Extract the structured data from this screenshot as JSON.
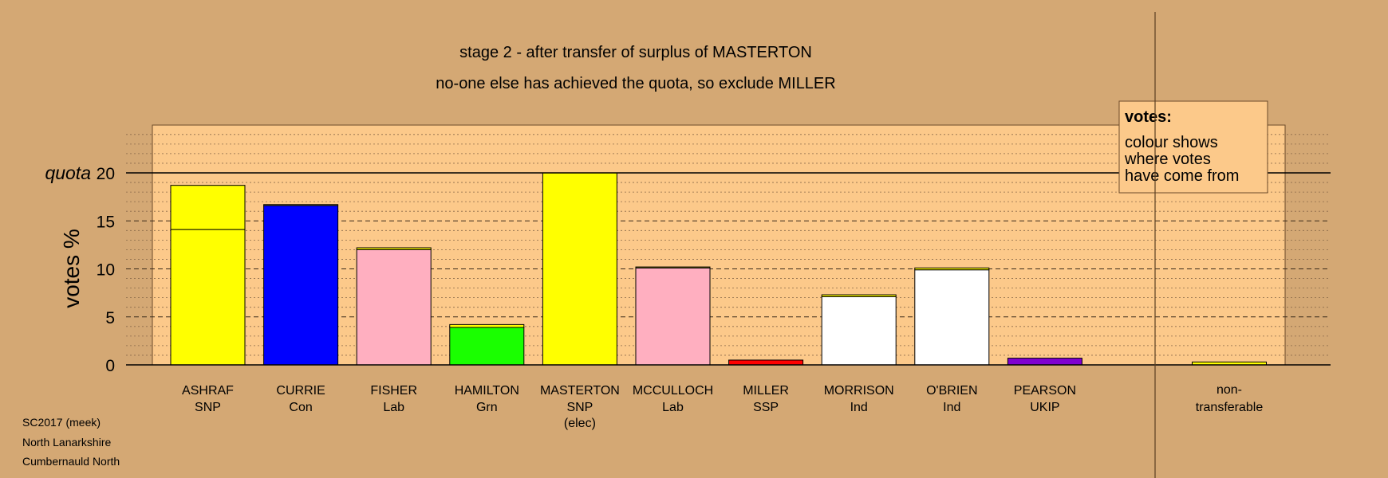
{
  "chart_data": {
    "type": "bar",
    "title": "stage 2 - after transfer of surplus of MASTERTON",
    "subtitle": "no-one else has achieved the quota, so exclude MILLER",
    "ylabel": "votes %",
    "quota_label": "quota",
    "quota": 20,
    "ylim": [
      0,
      25
    ],
    "yticks": [
      0,
      5,
      10,
      15,
      20
    ],
    "grid": true,
    "legend": {
      "position": "top-right",
      "heading": "votes:",
      "lines": [
        "colour shows",
        "where votes",
        "have come from"
      ]
    },
    "colors": {
      "background": "#d4a874",
      "plot_area": "#fcc98a",
      "SNP": "#ffff00",
      "Con": "#0000ff",
      "Lab": "#ffafc0",
      "Grn": "#1aff00",
      "SSP": "#ff0000",
      "Ind": "#ffffff",
      "UKIP": "#8000d0"
    },
    "candidates": [
      {
        "name": "ASHRAF",
        "party": "SNP",
        "note": "",
        "segments": [
          {
            "from": "SNP",
            "value": 14.1
          },
          {
            "from": "SNP",
            "value": 4.6
          }
        ]
      },
      {
        "name": "CURRIE",
        "party": "Con",
        "note": "",
        "segments": [
          {
            "from": "Con",
            "value": 16.6
          },
          {
            "from": "SNP",
            "value": 0.1
          }
        ]
      },
      {
        "name": "FISHER",
        "party": "Lab",
        "note": "",
        "segments": [
          {
            "from": "Lab",
            "value": 12.0
          },
          {
            "from": "SNP",
            "value": 0.2
          }
        ]
      },
      {
        "name": "HAMILTON",
        "party": "Grn",
        "note": "",
        "segments": [
          {
            "from": "Grn",
            "value": 3.9
          },
          {
            "from": "SNP",
            "value": 0.3
          }
        ]
      },
      {
        "name": "MASTERTON",
        "party": "SNP",
        "note": "(elec)",
        "segments": [
          {
            "from": "SNP",
            "value": 20.0
          }
        ]
      },
      {
        "name": "MCCULLOCH",
        "party": "Lab",
        "note": "",
        "segments": [
          {
            "from": "Lab",
            "value": 10.1
          },
          {
            "from": "SNP",
            "value": 0.1
          }
        ]
      },
      {
        "name": "MILLER",
        "party": "SSP",
        "note": "",
        "segments": [
          {
            "from": "SSP",
            "value": 0.5
          }
        ]
      },
      {
        "name": "MORRISON",
        "party": "Ind",
        "note": "",
        "segments": [
          {
            "from": "Ind",
            "value": 7.1
          },
          {
            "from": "SNP",
            "value": 0.2
          }
        ]
      },
      {
        "name": "O'BRIEN",
        "party": "Ind",
        "note": "",
        "segments": [
          {
            "from": "Ind",
            "value": 9.9
          },
          {
            "from": "SNP",
            "value": 0.2
          }
        ]
      },
      {
        "name": "PEARSON",
        "party": "UKIP",
        "note": "",
        "segments": [
          {
            "from": "UKIP",
            "value": 0.7
          }
        ]
      }
    ],
    "non_transferable": {
      "label_lines": [
        "non-",
        "transferable"
      ],
      "segments": [
        {
          "from": "SNP",
          "value": 0.3
        }
      ]
    }
  },
  "footer": {
    "lines": [
      "SC2017 (meek)",
      "North Lanarkshire",
      "Cumbernauld North"
    ]
  }
}
